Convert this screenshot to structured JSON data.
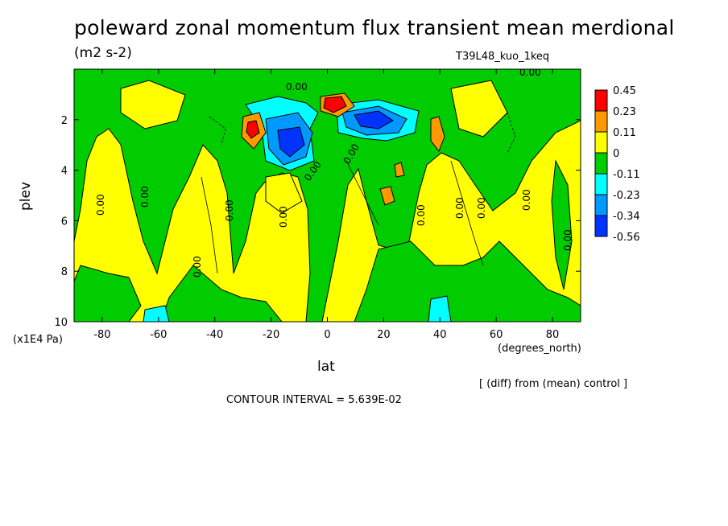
{
  "chart_data": {
    "type": "heatmap",
    "title": "poleward zonal momentum flux transient mean merdional",
    "units": "(m2 s-2)",
    "experiment": "T39L48_kuo_1keq",
    "xlabel": "lat",
    "xunit": "(degrees_north)",
    "ylabel": "plev",
    "yunit": "(x1E4 Pa)",
    "xlim": [
      -90,
      90
    ],
    "ylim": [
      10,
      0
    ],
    "xticks": [
      -80,
      -60,
      -40,
      -20,
      0,
      20,
      40,
      60,
      80
    ],
    "yticks": [
      2,
      4,
      6,
      8,
      10
    ],
    "diff_note": "[ (diff) from (mean) control ]",
    "contour_interval": "CONTOUR INTERVAL = 5.639E-02",
    "contour_label_value": "0.00",
    "legend": {
      "levels": [
        "0.45",
        "0.23",
        "0.11",
        "0",
        "-0.11",
        "-0.23",
        "-0.34",
        "-0.56"
      ],
      "colors": [
        "#ff0000",
        "#ff9900",
        "#ffff00",
        "#00cc00",
        "#00ffff",
        "#0099ff",
        "#0033ff"
      ]
    },
    "features": [
      {
        "lat": 3,
        "plev": 1.4,
        "level": "0.45"
      },
      {
        "lat": -27,
        "plev": 2.5,
        "level": "0.23"
      },
      {
        "lat": 38,
        "plev": 2.7,
        "level": "0.11"
      },
      {
        "lat": 25,
        "plev": 5.0,
        "level": "0.11"
      },
      {
        "lat": -15,
        "plev": 2.5,
        "level": "-0.56"
      },
      {
        "lat": 18,
        "plev": 2.1,
        "level": "-0.56"
      },
      {
        "lat": -8,
        "plev": 1.4,
        "level": "-0.23"
      },
      {
        "lat": 40,
        "plev": 9.7,
        "level": "-0.11"
      },
      {
        "lat": -60,
        "plev": 9.8,
        "level": "-0.11"
      }
    ]
  }
}
